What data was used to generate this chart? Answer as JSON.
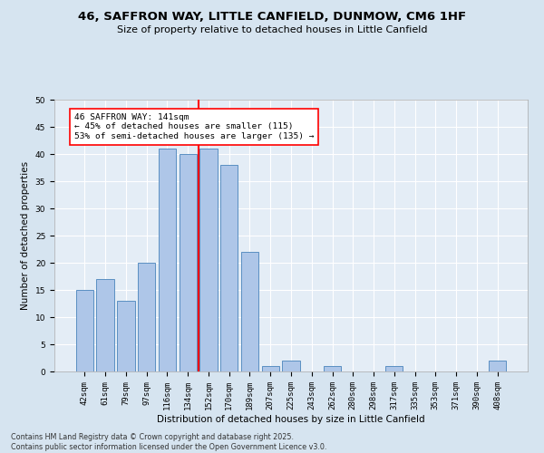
{
  "title": "46, SAFFRON WAY, LITTLE CANFIELD, DUNMOW, CM6 1HF",
  "subtitle": "Size of property relative to detached houses in Little Canfield",
  "xlabel": "Distribution of detached houses by size in Little Canfield",
  "ylabel": "Number of detached properties",
  "categories": [
    "42sqm",
    "61sqm",
    "79sqm",
    "97sqm",
    "116sqm",
    "134sqm",
    "152sqm",
    "170sqm",
    "189sqm",
    "207sqm",
    "225sqm",
    "243sqm",
    "262sqm",
    "280sqm",
    "298sqm",
    "317sqm",
    "335sqm",
    "353sqm",
    "371sqm",
    "390sqm",
    "408sqm"
  ],
  "values": [
    15,
    17,
    13,
    20,
    41,
    40,
    41,
    38,
    22,
    1,
    2,
    0,
    1,
    0,
    0,
    1,
    0,
    0,
    0,
    0,
    2
  ],
  "bar_color": "#aec6e8",
  "bar_edge_color": "#5a8fc2",
  "vline_x": 5.5,
  "vline_color": "red",
  "annotation_text": "46 SAFFRON WAY: 141sqm\n← 45% of detached houses are smaller (115)\n53% of semi-detached houses are larger (135) →",
  "ylim": [
    0,
    50
  ],
  "yticks": [
    0,
    5,
    10,
    15,
    20,
    25,
    30,
    35,
    40,
    45,
    50
  ],
  "footer": "Contains HM Land Registry data © Crown copyright and database right 2025.\nContains public sector information licensed under the Open Government Licence v3.0.",
  "bg_color": "#d6e4f0",
  "plot_bg_color": "#e4edf6",
  "title_fontsize": 9.5,
  "subtitle_fontsize": 8,
  "axis_fontsize": 7.5,
  "tick_fontsize": 6.5,
  "annotation_fontsize": 6.8,
  "footer_fontsize": 5.8
}
